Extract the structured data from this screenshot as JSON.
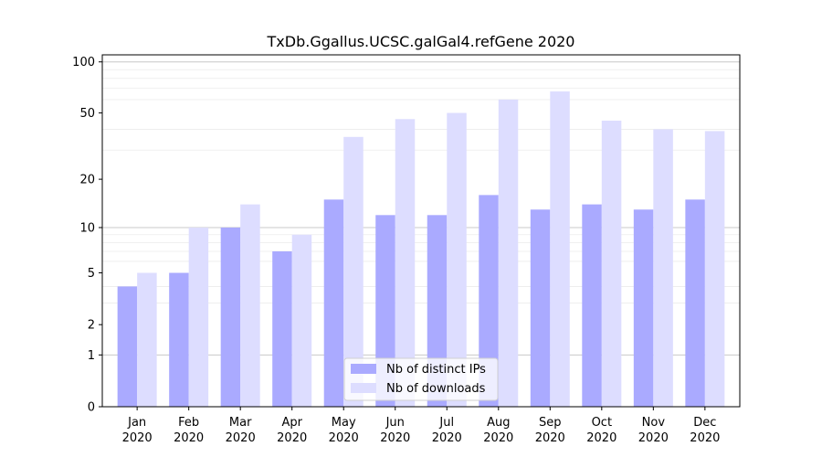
{
  "chart_data": {
    "type": "bar",
    "title": "TxDb.Ggallus.UCSC.galGal4.refGene 2020",
    "xlabel": "",
    "ylabel": "",
    "y_scale": "log(1+y)",
    "ylim": [
      0,
      110
    ],
    "yticks": [
      0,
      1,
      2,
      5,
      10,
      20,
      50,
      100
    ],
    "grid": "horizontal",
    "legend_position": "bottom-center",
    "categories": [
      [
        "Jan",
        "2020"
      ],
      [
        "Feb",
        "2020"
      ],
      [
        "Mar",
        "2020"
      ],
      [
        "Apr",
        "2020"
      ],
      [
        "May",
        "2020"
      ],
      [
        "Jun",
        "2020"
      ],
      [
        "Jul",
        "2020"
      ],
      [
        "Aug",
        "2020"
      ],
      [
        "Sep",
        "2020"
      ],
      [
        "Oct",
        "2020"
      ],
      [
        "Nov",
        "2020"
      ],
      [
        "Dec",
        "2020"
      ]
    ],
    "series": [
      {
        "name": "Nb of distinct IPs",
        "color": "#aaaaff",
        "values": [
          4,
          5,
          10,
          7,
          15,
          12,
          12,
          16,
          13,
          14,
          13,
          15
        ]
      },
      {
        "name": "Nb of downloads",
        "color": "#ddddff",
        "values": [
          5,
          10,
          14,
          9,
          36,
          46,
          50,
          60,
          67,
          45,
          40,
          39
        ]
      }
    ]
  }
}
